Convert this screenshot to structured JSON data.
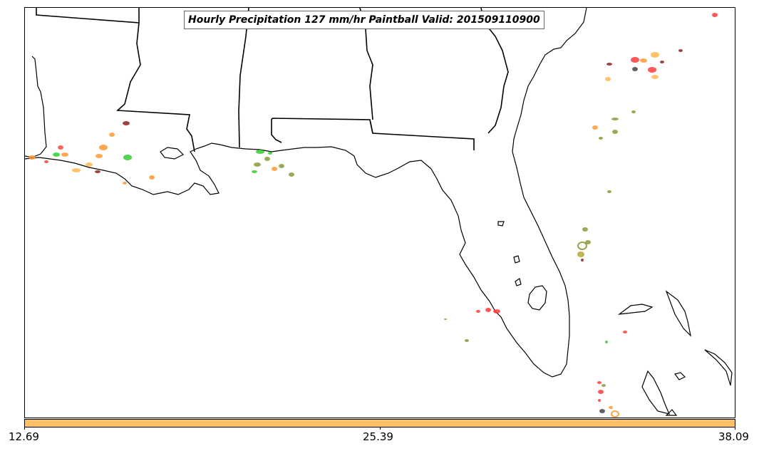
{
  "map": {
    "title": "Hourly Precipitation 127 mm/hr Paintball Valid: 201509110900"
  },
  "colorbar": {
    "fill_color": "#ffc266",
    "ticks": [
      "12.69",
      "25.39",
      "38.09"
    ]
  },
  "paintball_colors": {
    "red": "#ff3b3b",
    "orange": "#ff9933",
    "light_orange": "#ffb84d",
    "green": "#33cc33",
    "olive": "#8a9a3a",
    "dark_red": "#8b2222",
    "dark_gray": "#444444"
  }
}
